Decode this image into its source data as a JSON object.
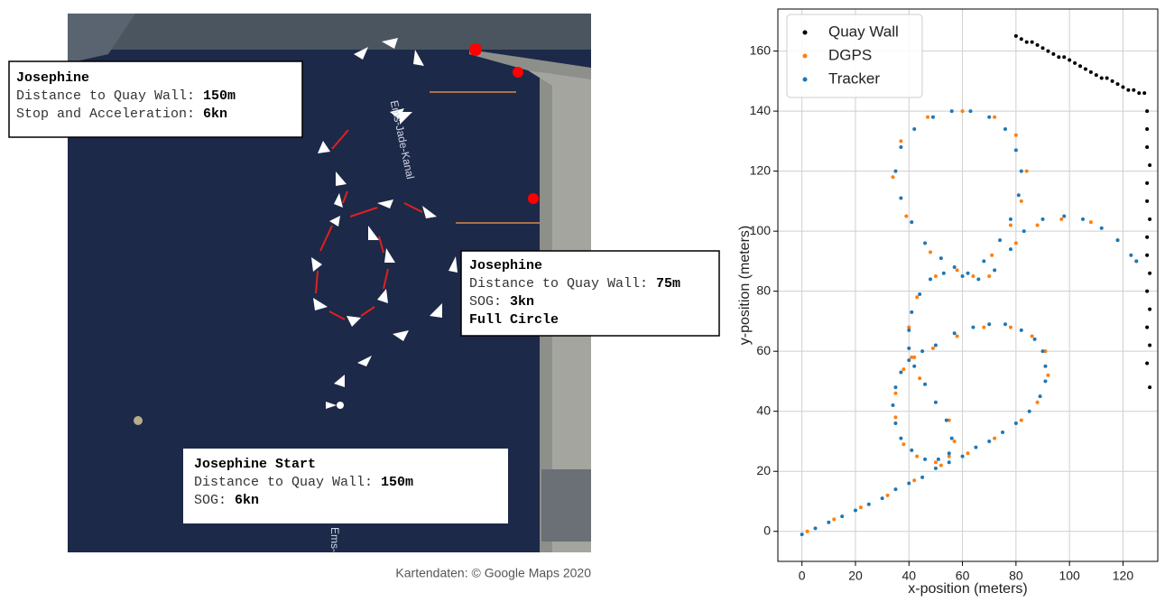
{
  "map": {
    "labels": [
      "Ems-Jade-Kanal",
      "Ems-"
    ],
    "boxes": [
      {
        "title": "Josephine",
        "lines": [
          {
            "label": "Distance to Quay Wall:",
            "value": "150m"
          },
          {
            "label": "Stop and Acceleration:",
            "value": "6kn"
          }
        ]
      },
      {
        "title": "Josephine",
        "lines": [
          {
            "label": "Distance to Quay Wall:",
            "value": "75m"
          },
          {
            "label": "SOG:",
            "value": "3kn"
          }
        ],
        "note": "Full Circle"
      },
      {
        "title": "Josephine Start",
        "lines": [
          {
            "label": "Distance to Quay Wall:",
            "value": "150m"
          },
          {
            "label": "SOG:",
            "value": "6kn"
          }
        ]
      }
    ],
    "caption": "Kartendaten: © Google Maps 2020"
  },
  "chart_data": {
    "type": "scatter",
    "xlabel": "x-position (meters)",
    "ylabel": "y-position (meters)",
    "xlim": [
      -9,
      133
    ],
    "ylim": [
      -10,
      174
    ],
    "xticks": [
      0,
      20,
      40,
      60,
      80,
      100,
      120
    ],
    "yticks": [
      0,
      20,
      40,
      60,
      80,
      100,
      120,
      140,
      160
    ],
    "grid": true,
    "legend": "upper left",
    "series": [
      {
        "name": "Quay Wall",
        "color": "#000000",
        "x": [
          80,
          82,
          84,
          86,
          88,
          90,
          92,
          94,
          96,
          98,
          100,
          102,
          104,
          106,
          108,
          110,
          112,
          114,
          116,
          118,
          120,
          122,
          124,
          126,
          128,
          129,
          129,
          129,
          130,
          129,
          129,
          130,
          129,
          129,
          130,
          129,
          130,
          129,
          130,
          129,
          130
        ],
        "values": [
          165,
          164,
          163,
          163,
          162,
          161,
          160,
          159,
          158,
          158,
          157,
          156,
          155,
          154,
          153,
          152,
          151,
          151,
          150,
          149,
          148,
          147,
          147,
          146,
          146,
          140,
          134,
          128,
          122,
          116,
          110,
          104,
          98,
          92,
          86,
          80,
          74,
          68,
          62,
          56,
          48
        ]
      },
      {
        "name": "DGPS",
        "color": "#ff7f0e",
        "x": [
          2,
          12,
          22,
          32,
          42,
          52,
          62,
          72,
          82,
          88,
          92,
          91,
          86,
          78,
          68,
          58,
          49,
          42,
          38,
          35,
          35,
          38,
          43,
          50,
          55,
          57,
          55,
          44,
          41,
          40,
          43,
          50,
          58,
          48,
          39,
          34,
          37,
          47,
          60,
          72,
          80,
          84,
          82,
          78,
          71,
          64,
          70,
          80,
          88,
          97,
          108,
          118,
          125
        ],
        "values": [
          0,
          4,
          8,
          12,
          17,
          22,
          26,
          31,
          37,
          43,
          52,
          60,
          65,
          68,
          68,
          65,
          61,
          58,
          54,
          46,
          38,
          29,
          25,
          23,
          25,
          30,
          37,
          51,
          58,
          68,
          78,
          85,
          87,
          93,
          105,
          118,
          130,
          138,
          140,
          138,
          132,
          120,
          110,
          102,
          92,
          85,
          85,
          96,
          102,
          104,
          103,
          97,
          90
        ]
      },
      {
        "name": "Tracker",
        "color": "#1f77b4",
        "x": [
          0,
          5,
          10,
          15,
          20,
          25,
          30,
          35,
          40,
          45,
          50,
          55,
          60,
          65,
          70,
          75,
          80,
          85,
          89,
          91,
          91,
          90,
          87,
          82,
          76,
          70,
          64,
          57,
          50,
          45,
          40,
          37,
          35,
          34,
          35,
          37,
          41,
          46,
          51,
          55,
          56,
          54,
          50,
          46,
          42,
          40,
          40,
          41,
          44,
          48,
          53,
          57,
          52,
          46,
          41,
          37,
          35,
          37,
          42,
          49,
          56,
          63,
          70,
          76,
          80,
          82,
          81,
          78,
          74,
          68,
          62,
          60,
          66,
          72,
          78,
          83,
          90,
          98,
          105,
          112,
          118,
          123,
          125
        ],
        "values": [
          -1,
          1,
          3,
          5,
          7,
          9,
          11,
          14,
          16,
          18,
          21,
          23,
          25,
          28,
          30,
          33,
          36,
          40,
          45,
          50,
          55,
          60,
          64,
          67,
          69,
          69,
          68,
          66,
          62,
          60,
          57,
          53,
          48,
          42,
          36,
          31,
          27,
          24,
          24,
          26,
          31,
          37,
          43,
          49,
          55,
          61,
          67,
          73,
          79,
          84,
          86,
          88,
          91,
          96,
          103,
          111,
          120,
          128,
          134,
          138,
          140,
          140,
          138,
          134,
          127,
          120,
          112,
          104,
          97,
          90,
          86,
          85,
          84,
          87,
          94,
          100,
          104,
          105,
          104,
          101,
          97,
          92,
          90
        ]
      }
    ]
  }
}
